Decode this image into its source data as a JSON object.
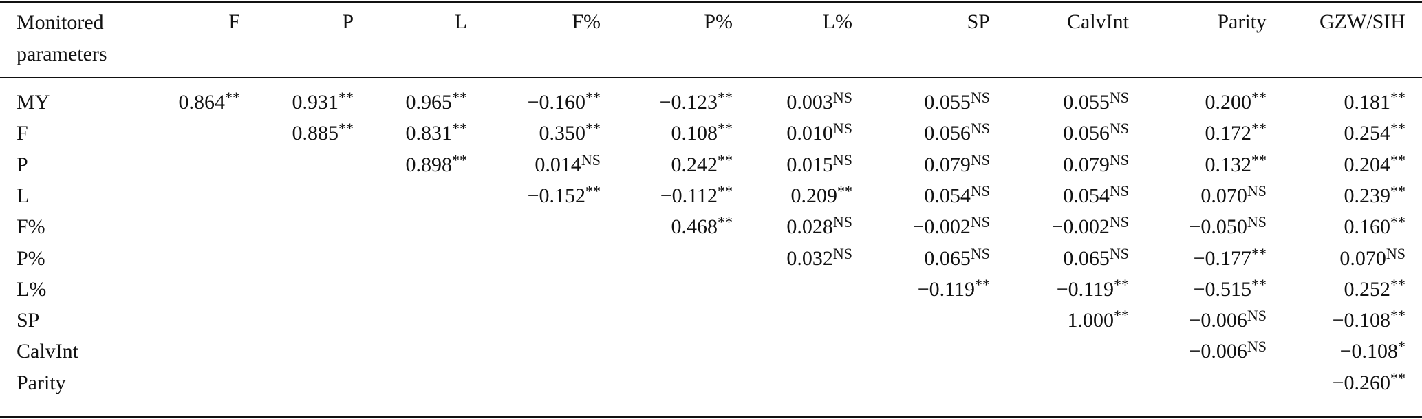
{
  "table": {
    "header": [
      "Monitored parameters",
      "F",
      "P",
      "L",
      "F%",
      "P%",
      "L%",
      "SP",
      "CalvInt",
      "Parity",
      "GZW/SIH"
    ],
    "rows": [
      {
        "label": "MY",
        "cells": [
          {
            "value": "0.864",
            "sig": "**"
          },
          {
            "value": "0.931",
            "sig": "**"
          },
          {
            "value": "0.965",
            "sig": "**"
          },
          {
            "value": "−0.160",
            "sig": "**"
          },
          {
            "value": "−0.123",
            "sig": "**"
          },
          {
            "value": "0.003",
            "sig": "NS"
          },
          {
            "value": "0.055",
            "sig": "NS"
          },
          {
            "value": "0.055",
            "sig": "NS"
          },
          {
            "value": "0.200",
            "sig": "**"
          },
          {
            "value": "0.181",
            "sig": "**"
          }
        ]
      },
      {
        "label": "F",
        "cells": [
          null,
          {
            "value": "0.885",
            "sig": "**"
          },
          {
            "value": "0.831",
            "sig": "**"
          },
          {
            "value": "0.350",
            "sig": "**"
          },
          {
            "value": "0.108",
            "sig": "**"
          },
          {
            "value": "0.010",
            "sig": "NS"
          },
          {
            "value": "0.056",
            "sig": "NS"
          },
          {
            "value": "0.056",
            "sig": "NS"
          },
          {
            "value": "0.172",
            "sig": "**"
          },
          {
            "value": "0.254",
            "sig": "**"
          }
        ]
      },
      {
        "label": "P",
        "cells": [
          null,
          null,
          {
            "value": "0.898",
            "sig": "**"
          },
          {
            "value": "0.014",
            "sig": "NS"
          },
          {
            "value": "0.242",
            "sig": "**"
          },
          {
            "value": "0.015",
            "sig": "NS"
          },
          {
            "value": "0.079",
            "sig": "NS"
          },
          {
            "value": "0.079",
            "sig": "NS"
          },
          {
            "value": "0.132",
            "sig": "**"
          },
          {
            "value": "0.204",
            "sig": "**"
          }
        ]
      },
      {
        "label": "L",
        "cells": [
          null,
          null,
          null,
          {
            "value": "−0.152",
            "sig": "**"
          },
          {
            "value": "−0.112",
            "sig": "**"
          },
          {
            "value": "0.209",
            "sig": "**"
          },
          {
            "value": "0.054",
            "sig": "NS"
          },
          {
            "value": "0.054",
            "sig": "NS"
          },
          {
            "value": "0.070",
            "sig": "NS"
          },
          {
            "value": "0.239",
            "sig": "**"
          }
        ]
      },
      {
        "label": "F%",
        "cells": [
          null,
          null,
          null,
          null,
          {
            "value": "0.468",
            "sig": "**"
          },
          {
            "value": "0.028",
            "sig": "NS"
          },
          {
            "value": "−0.002",
            "sig": "NS"
          },
          {
            "value": "−0.002",
            "sig": "NS"
          },
          {
            "value": "−0.050",
            "sig": "NS"
          },
          {
            "value": "0.160",
            "sig": "**"
          }
        ]
      },
      {
        "label": "P%",
        "cells": [
          null,
          null,
          null,
          null,
          null,
          {
            "value": "0.032",
            "sig": "NS"
          },
          {
            "value": "0.065",
            "sig": "NS"
          },
          {
            "value": "0.065",
            "sig": "NS"
          },
          {
            "value": "−0.177",
            "sig": "**"
          },
          {
            "value": "0.070",
            "sig": "NS"
          }
        ]
      },
      {
        "label": "L%",
        "cells": [
          null,
          null,
          null,
          null,
          null,
          null,
          {
            "value": "−0.119",
            "sig": "**"
          },
          {
            "value": "−0.119",
            "sig": "**"
          },
          {
            "value": "−0.515",
            "sig": "**"
          },
          {
            "value": "0.252",
            "sig": "**"
          }
        ]
      },
      {
        "label": "SP",
        "cells": [
          null,
          null,
          null,
          null,
          null,
          null,
          null,
          {
            "value": "1.000",
            "sig": "**"
          },
          {
            "value": "−0.006",
            "sig": "NS"
          },
          {
            "value": "−0.108",
            "sig": "**"
          }
        ]
      },
      {
        "label": "CalvInt",
        "cells": [
          null,
          null,
          null,
          null,
          null,
          null,
          null,
          null,
          {
            "value": "−0.006",
            "sig": "NS"
          },
          {
            "value": "−0.108",
            "sig": "*"
          }
        ]
      },
      {
        "label": "Parity",
        "cells": [
          null,
          null,
          null,
          null,
          null,
          null,
          null,
          null,
          null,
          {
            "value": "−0.260",
            "sig": "**"
          }
        ]
      }
    ]
  }
}
